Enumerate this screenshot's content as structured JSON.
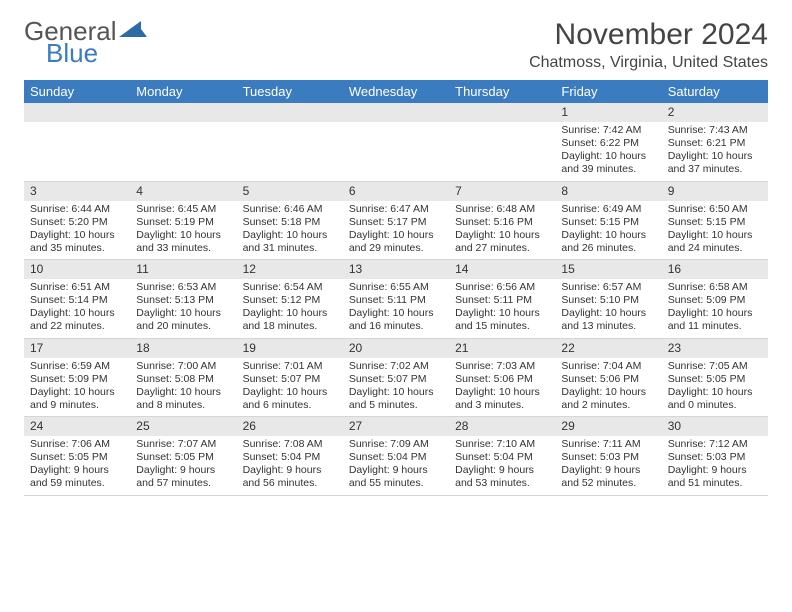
{
  "logo": {
    "general": "General",
    "blue": "Blue"
  },
  "title": {
    "month": "November 2024",
    "location": "Chatmoss, Virginia, United States"
  },
  "weekdays": [
    "Sunday",
    "Monday",
    "Tuesday",
    "Wednesday",
    "Thursday",
    "Friday",
    "Saturday"
  ],
  "colors": {
    "header_bg": "#3b7bbf",
    "header_text": "#ffffff",
    "daynum_bg": "#e8e8e8",
    "border": "#cfd6dd",
    "body_text": "#333333",
    "logo_gray": "#555555",
    "logo_blue": "#3b7bbf"
  },
  "weeks": [
    [
      null,
      null,
      null,
      null,
      null,
      {
        "num": "1",
        "sunrise": "Sunrise: 7:42 AM",
        "sunset": "Sunset: 6:22 PM",
        "daylight1": "Daylight: 10 hours",
        "daylight2": "and 39 minutes."
      },
      {
        "num": "2",
        "sunrise": "Sunrise: 7:43 AM",
        "sunset": "Sunset: 6:21 PM",
        "daylight1": "Daylight: 10 hours",
        "daylight2": "and 37 minutes."
      }
    ],
    [
      {
        "num": "3",
        "sunrise": "Sunrise: 6:44 AM",
        "sunset": "Sunset: 5:20 PM",
        "daylight1": "Daylight: 10 hours",
        "daylight2": "and 35 minutes."
      },
      {
        "num": "4",
        "sunrise": "Sunrise: 6:45 AM",
        "sunset": "Sunset: 5:19 PM",
        "daylight1": "Daylight: 10 hours",
        "daylight2": "and 33 minutes."
      },
      {
        "num": "5",
        "sunrise": "Sunrise: 6:46 AM",
        "sunset": "Sunset: 5:18 PM",
        "daylight1": "Daylight: 10 hours",
        "daylight2": "and 31 minutes."
      },
      {
        "num": "6",
        "sunrise": "Sunrise: 6:47 AM",
        "sunset": "Sunset: 5:17 PM",
        "daylight1": "Daylight: 10 hours",
        "daylight2": "and 29 minutes."
      },
      {
        "num": "7",
        "sunrise": "Sunrise: 6:48 AM",
        "sunset": "Sunset: 5:16 PM",
        "daylight1": "Daylight: 10 hours",
        "daylight2": "and 27 minutes."
      },
      {
        "num": "8",
        "sunrise": "Sunrise: 6:49 AM",
        "sunset": "Sunset: 5:15 PM",
        "daylight1": "Daylight: 10 hours",
        "daylight2": "and 26 minutes."
      },
      {
        "num": "9",
        "sunrise": "Sunrise: 6:50 AM",
        "sunset": "Sunset: 5:15 PM",
        "daylight1": "Daylight: 10 hours",
        "daylight2": "and 24 minutes."
      }
    ],
    [
      {
        "num": "10",
        "sunrise": "Sunrise: 6:51 AM",
        "sunset": "Sunset: 5:14 PM",
        "daylight1": "Daylight: 10 hours",
        "daylight2": "and 22 minutes."
      },
      {
        "num": "11",
        "sunrise": "Sunrise: 6:53 AM",
        "sunset": "Sunset: 5:13 PM",
        "daylight1": "Daylight: 10 hours",
        "daylight2": "and 20 minutes."
      },
      {
        "num": "12",
        "sunrise": "Sunrise: 6:54 AM",
        "sunset": "Sunset: 5:12 PM",
        "daylight1": "Daylight: 10 hours",
        "daylight2": "and 18 minutes."
      },
      {
        "num": "13",
        "sunrise": "Sunrise: 6:55 AM",
        "sunset": "Sunset: 5:11 PM",
        "daylight1": "Daylight: 10 hours",
        "daylight2": "and 16 minutes."
      },
      {
        "num": "14",
        "sunrise": "Sunrise: 6:56 AM",
        "sunset": "Sunset: 5:11 PM",
        "daylight1": "Daylight: 10 hours",
        "daylight2": "and 15 minutes."
      },
      {
        "num": "15",
        "sunrise": "Sunrise: 6:57 AM",
        "sunset": "Sunset: 5:10 PM",
        "daylight1": "Daylight: 10 hours",
        "daylight2": "and 13 minutes."
      },
      {
        "num": "16",
        "sunrise": "Sunrise: 6:58 AM",
        "sunset": "Sunset: 5:09 PM",
        "daylight1": "Daylight: 10 hours",
        "daylight2": "and 11 minutes."
      }
    ],
    [
      {
        "num": "17",
        "sunrise": "Sunrise: 6:59 AM",
        "sunset": "Sunset: 5:09 PM",
        "daylight1": "Daylight: 10 hours",
        "daylight2": "and 9 minutes."
      },
      {
        "num": "18",
        "sunrise": "Sunrise: 7:00 AM",
        "sunset": "Sunset: 5:08 PM",
        "daylight1": "Daylight: 10 hours",
        "daylight2": "and 8 minutes."
      },
      {
        "num": "19",
        "sunrise": "Sunrise: 7:01 AM",
        "sunset": "Sunset: 5:07 PM",
        "daylight1": "Daylight: 10 hours",
        "daylight2": "and 6 minutes."
      },
      {
        "num": "20",
        "sunrise": "Sunrise: 7:02 AM",
        "sunset": "Sunset: 5:07 PM",
        "daylight1": "Daylight: 10 hours",
        "daylight2": "and 5 minutes."
      },
      {
        "num": "21",
        "sunrise": "Sunrise: 7:03 AM",
        "sunset": "Sunset: 5:06 PM",
        "daylight1": "Daylight: 10 hours",
        "daylight2": "and 3 minutes."
      },
      {
        "num": "22",
        "sunrise": "Sunrise: 7:04 AM",
        "sunset": "Sunset: 5:06 PM",
        "daylight1": "Daylight: 10 hours",
        "daylight2": "and 2 minutes."
      },
      {
        "num": "23",
        "sunrise": "Sunrise: 7:05 AM",
        "sunset": "Sunset: 5:05 PM",
        "daylight1": "Daylight: 10 hours",
        "daylight2": "and 0 minutes."
      }
    ],
    [
      {
        "num": "24",
        "sunrise": "Sunrise: 7:06 AM",
        "sunset": "Sunset: 5:05 PM",
        "daylight1": "Daylight: 9 hours",
        "daylight2": "and 59 minutes."
      },
      {
        "num": "25",
        "sunrise": "Sunrise: 7:07 AM",
        "sunset": "Sunset: 5:05 PM",
        "daylight1": "Daylight: 9 hours",
        "daylight2": "and 57 minutes."
      },
      {
        "num": "26",
        "sunrise": "Sunrise: 7:08 AM",
        "sunset": "Sunset: 5:04 PM",
        "daylight1": "Daylight: 9 hours",
        "daylight2": "and 56 minutes."
      },
      {
        "num": "27",
        "sunrise": "Sunrise: 7:09 AM",
        "sunset": "Sunset: 5:04 PM",
        "daylight1": "Daylight: 9 hours",
        "daylight2": "and 55 minutes."
      },
      {
        "num": "28",
        "sunrise": "Sunrise: 7:10 AM",
        "sunset": "Sunset: 5:04 PM",
        "daylight1": "Daylight: 9 hours",
        "daylight2": "and 53 minutes."
      },
      {
        "num": "29",
        "sunrise": "Sunrise: 7:11 AM",
        "sunset": "Sunset: 5:03 PM",
        "daylight1": "Daylight: 9 hours",
        "daylight2": "and 52 minutes."
      },
      {
        "num": "30",
        "sunrise": "Sunrise: 7:12 AM",
        "sunset": "Sunset: 5:03 PM",
        "daylight1": "Daylight: 9 hours",
        "daylight2": "and 51 minutes."
      }
    ]
  ]
}
